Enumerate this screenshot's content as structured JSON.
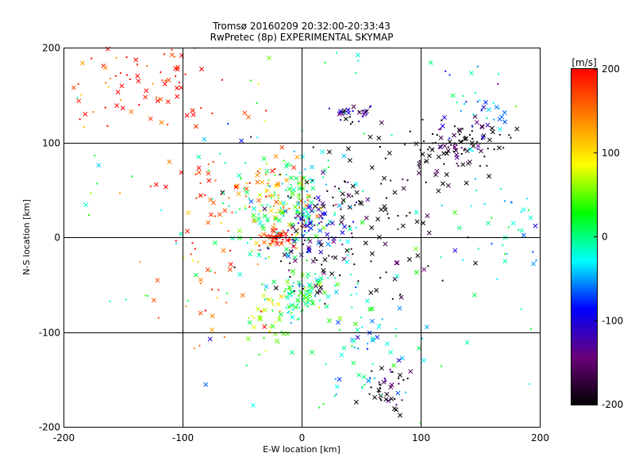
{
  "chart_data": {
    "type": "scatter",
    "title": "Tromsø 20160209 20:32:00-20:33:43",
    "subtitle": "RwPretec (8p) EXPERIMENTAL SKYMAP",
    "xlabel": "E-W location [km]",
    "ylabel": "N-S location [km]",
    "xlim": [
      -200,
      200
    ],
    "ylim": [
      -200,
      200
    ],
    "x_ticks": [
      "-200",
      "-100",
      "0",
      "100",
      "200"
    ],
    "y_ticks": [
      "-200",
      "-100",
      "0",
      "100",
      "200"
    ],
    "grid": true,
    "markers": [
      "cross",
      "dot"
    ],
    "colorbar": {
      "title": "[m/s]",
      "range": [
        -200,
        200
      ],
      "ticks": [
        "200",
        "100",
        "0",
        "-100",
        "-200"
      ],
      "colormap": [
        "#000000",
        "#6a007a",
        "#0000ff",
        "#00ffff",
        "#00ff00",
        "#ffff00",
        "#ff8000",
        "#ff0000"
      ]
    },
    "clusters": [
      {
        "x": -140,
        "y": 160,
        "sx": 40,
        "sy": 25,
        "v": 190,
        "n": 90
      },
      {
        "x": -20,
        "y": 40,
        "sx": 20,
        "sy": 20,
        "v": 120,
        "n": 80
      },
      {
        "x": -10,
        "y": 30,
        "sx": 25,
        "sy": 25,
        "v": 0,
        "n": 160
      },
      {
        "x": 10,
        "y": 10,
        "sx": 15,
        "sy": 15,
        "v": -110,
        "n": 70
      },
      {
        "x": -20,
        "y": 0,
        "sx": 6,
        "sy": 5,
        "v": 195,
        "n": 45
      },
      {
        "x": 0,
        "y": -60,
        "sx": 10,
        "sy": 12,
        "v": 10,
        "n": 90
      },
      {
        "x": -30,
        "y": -85,
        "sx": 10,
        "sy": 15,
        "v": 60,
        "n": 40
      },
      {
        "x": 50,
        "y": 40,
        "sx": 40,
        "sy": 30,
        "v": -200,
        "n": 90
      },
      {
        "x": 130,
        "y": 95,
        "sx": 20,
        "sy": 15,
        "v": -200,
        "n": 100
      },
      {
        "x": 45,
        "y": 130,
        "sx": 10,
        "sy": 6,
        "v": -140,
        "n": 30
      },
      {
        "x": 150,
        "y": 130,
        "sx": 20,
        "sy": 20,
        "v": -60,
        "n": 40
      },
      {
        "x": 70,
        "y": -160,
        "sx": 10,
        "sy": 15,
        "v": -190,
        "n": 40
      },
      {
        "x": 175,
        "y": 0,
        "sx": 20,
        "sy": 35,
        "v": -20,
        "n": 35
      },
      {
        "x": 60,
        "y": -110,
        "sx": 25,
        "sy": 35,
        "v": -30,
        "n": 60
      },
      {
        "x": 40,
        "y": -30,
        "sx": 40,
        "sy": 25,
        "v": -200,
        "n": 50
      },
      {
        "x": -80,
        "y": -40,
        "sx": 30,
        "sy": 40,
        "v": 170,
        "n": 40
      },
      {
        "x": -60,
        "y": 60,
        "sx": 30,
        "sy": 20,
        "v": 180,
        "n": 40
      },
      {
        "x": 0,
        "y": 0,
        "sx": 120,
        "sy": 120,
        "v": 0,
        "n": 120
      }
    ]
  }
}
